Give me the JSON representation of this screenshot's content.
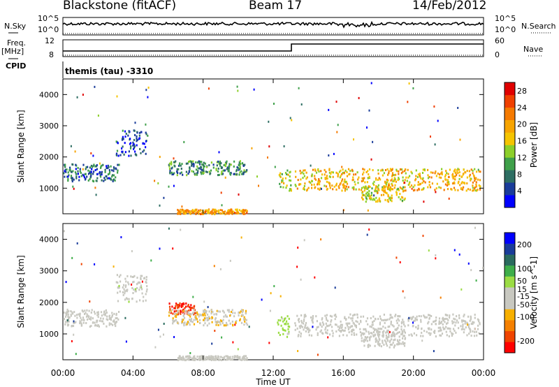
{
  "header": {
    "site": "Blackstone (fitACF)",
    "beam": "Beam 17",
    "date": "14/Feb/2012"
  },
  "left_labels": {
    "nsky": "N.Sky",
    "freq": "Freq.",
    "freq_unit": "[MHz]",
    "cpid": "CPID"
  },
  "right_labels": {
    "nsearch": "N.Search",
    "nave": "Nave"
  },
  "noise_panel": {
    "left_ticks": [
      "10^5",
      "10^0"
    ],
    "right_ticks": [
      "10^5",
      "10^0"
    ]
  },
  "freq_panel": {
    "left_ticks": [
      "12",
      "8"
    ],
    "right_ticks": [
      "60",
      "0"
    ]
  },
  "cpid_text": "themis (tau) -3310",
  "colors": {
    "power_scale": [
      "#0000ff",
      "#1a3c9a",
      "#2e6e63",
      "#3fa04a",
      "#8ccf2a",
      "#f5c400",
      "#f7a400",
      "#f57a00",
      "#f04000",
      "#e00000"
    ],
    "velocity_scale": [
      "#ff0000",
      "#f04400",
      "#f58000",
      "#f7b000",
      "#c8c8c0",
      "#c8c8c0",
      "#9bdc44",
      "#3fae4a",
      "#2a6b5e",
      "#1a3c9a",
      "#0000ff"
    ]
  },
  "chart_data": [
    {
      "type": "heatmap",
      "title": "",
      "xlabel": "",
      "ylabel": "Slant Range [km]",
      "x_ticks": [
        "00:00",
        "04:00",
        "08:00",
        "12:00",
        "16:00",
        "20:00",
        "00:00"
      ],
      "xlim_hours": [
        0,
        24
      ],
      "ylim": [
        180,
        4500
      ],
      "y_ticks": [
        1000,
        2000,
        3000,
        4000
      ],
      "colorbar": {
        "label": "Power [dB]",
        "ticks": [
          4,
          8,
          12,
          16,
          20,
          24,
          28
        ],
        "range": [
          0,
          30
        ]
      },
      "scatter_regions": [
        {
          "t_start": 0.0,
          "t_end": 3.2,
          "range_km": [
            1250,
            1800
          ],
          "value": 7
        },
        {
          "t_start": 3.0,
          "t_end": 4.8,
          "range_km": [
            2050,
            2900
          ],
          "value": 5
        },
        {
          "t_start": 6.0,
          "t_end": 10.5,
          "range_km": [
            1450,
            1900
          ],
          "value": 9
        },
        {
          "t_start": 6.5,
          "t_end": 10.5,
          "range_km": [
            200,
            350
          ],
          "value": 20
        },
        {
          "t_start": 12.3,
          "t_end": 13.0,
          "range_km": [
            900,
            1600
          ],
          "value": 14
        },
        {
          "t_start": 13.2,
          "t_end": 23.8,
          "range_km": [
            950,
            1650
          ],
          "value": 18
        },
        {
          "t_start": 17.0,
          "t_end": 19.5,
          "range_km": [
            600,
            1100
          ],
          "value": 16
        }
      ]
    },
    {
      "type": "heatmap",
      "title": "",
      "xlabel": "Time UT",
      "ylabel": "Slant Range [km]",
      "x_ticks": [
        "00:00",
        "04:00",
        "08:00",
        "12:00",
        "16:00",
        "20:00",
        "00:00"
      ],
      "xlim_hours": [
        0,
        24
      ],
      "ylim": [
        180,
        4500
      ],
      "y_ticks": [
        1000,
        2000,
        3000,
        4000
      ],
      "colorbar": {
        "label": "Velocity [m s^-1]",
        "ticks": [
          -200,
          -100,
          -50,
          -15,
          15,
          50,
          100,
          200
        ],
        "range": [
          -250,
          250
        ]
      },
      "scatter_regions": [
        {
          "t_start": 0.0,
          "t_end": 3.2,
          "range_km": [
            1250,
            1800
          ],
          "value": 0
        },
        {
          "t_start": 3.0,
          "t_end": 4.8,
          "range_km": [
            2050,
            2900
          ],
          "value": 5
        },
        {
          "t_start": 6.0,
          "t_end": 7.6,
          "range_km": [
            1650,
            2000
          ],
          "value": -200
        },
        {
          "t_start": 6.0,
          "t_end": 10.5,
          "range_km": [
            1300,
            1800
          ],
          "value": -60
        },
        {
          "t_start": 6.5,
          "t_end": 10.5,
          "range_km": [
            200,
            330
          ],
          "value": -40
        },
        {
          "t_start": 12.2,
          "t_end": 12.9,
          "range_km": [
            900,
            1600
          ],
          "value": 40
        },
        {
          "t_start": 13.2,
          "t_end": 23.8,
          "range_km": [
            950,
            1650
          ],
          "value": 0
        },
        {
          "t_start": 17.0,
          "t_end": 19.5,
          "range_km": [
            600,
            1100
          ],
          "value": 0
        }
      ]
    }
  ]
}
